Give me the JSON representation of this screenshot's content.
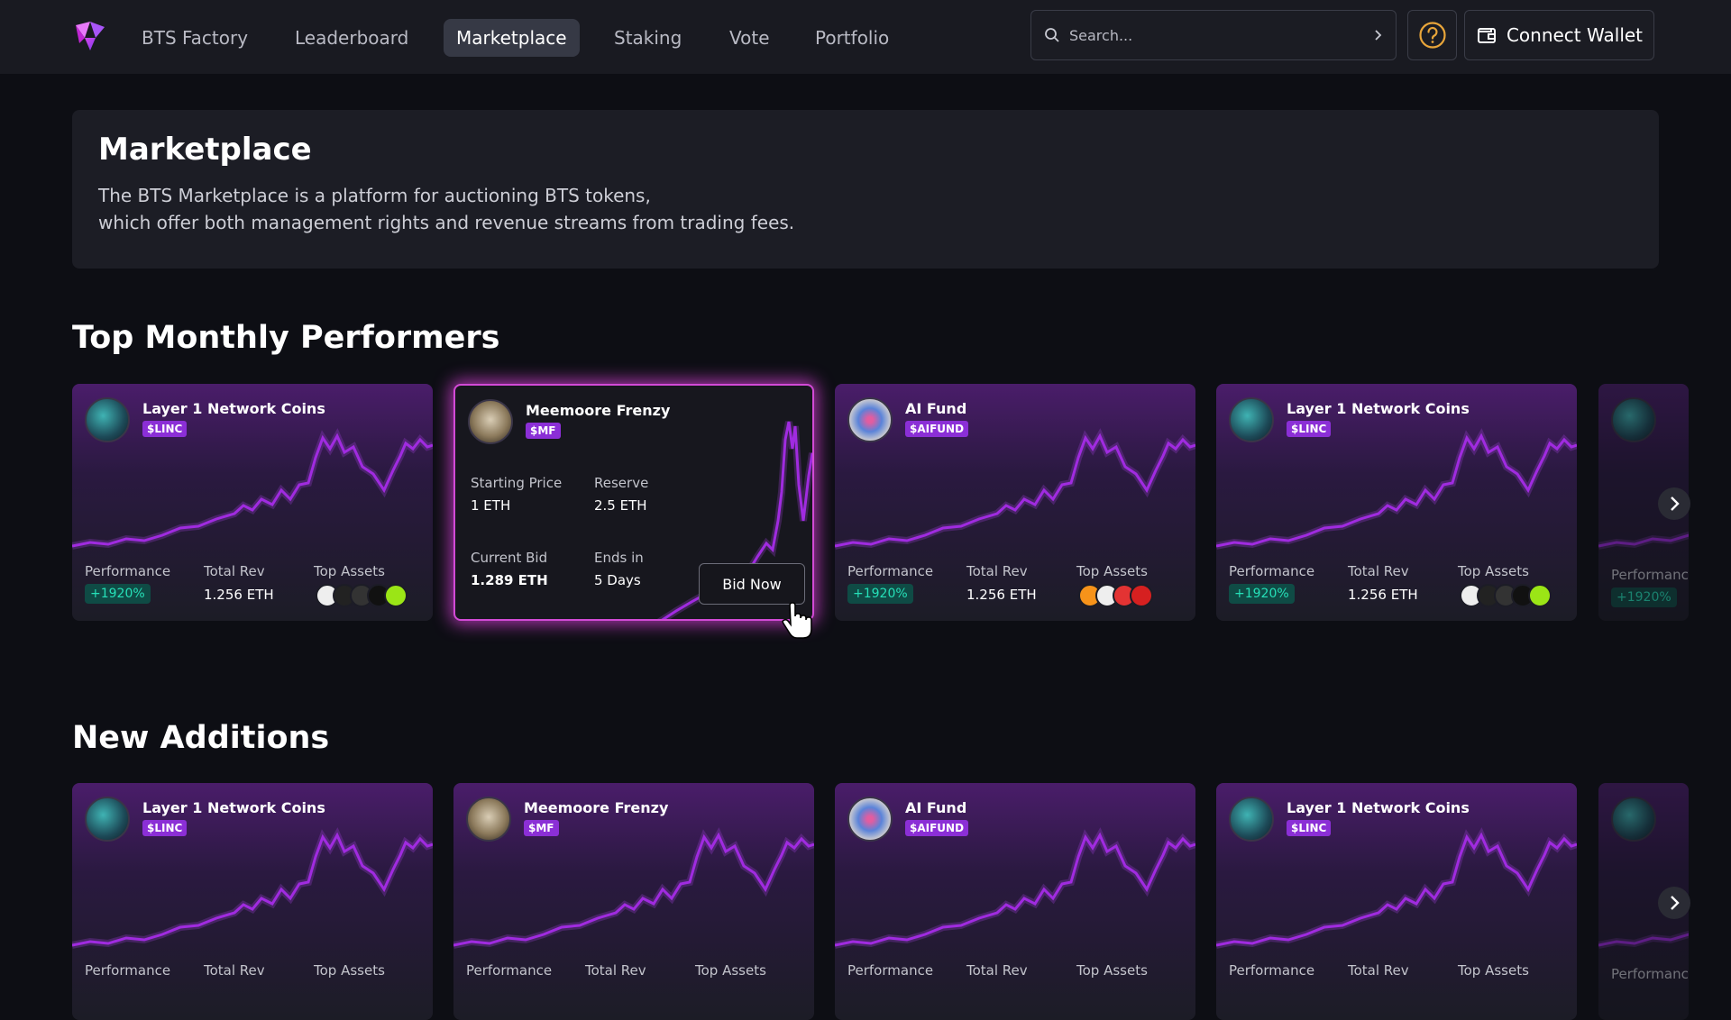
{
  "nav": {
    "items": [
      {
        "label": "BTS Factory",
        "active": false
      },
      {
        "label": "Leaderboard",
        "active": false
      },
      {
        "label": "Marketplace",
        "active": true
      },
      {
        "label": "Staking",
        "active": false
      },
      {
        "label": "Vote",
        "active": false
      },
      {
        "label": "Portfolio",
        "active": false
      }
    ],
    "search_placeholder": "Search...",
    "connect_wallet": "Connect Wallet"
  },
  "hero": {
    "title": "Marketplace",
    "line1": "The BTS Marketplace is a platform for auctioning BTS tokens,",
    "line2": "which offer both management rights and revenue streams from trading fees."
  },
  "sections": {
    "top_title": "Top Monthly Performers",
    "new_title": "New Additions"
  },
  "labels": {
    "performance": "Performance",
    "total_rev": "Total Rev",
    "top_assets": "Top Assets",
    "starting_price": "Starting Price",
    "reserve": "Reserve",
    "current_bid": "Current Bid",
    "ends_in": "Ends in",
    "bid_now": "Bid Now",
    "partial_perf": "Performance"
  },
  "cards": {
    "linc": {
      "name": "Layer 1 Network Coins",
      "ticker": "$LINC",
      "performance": "+1920%",
      "total_rev": "1.256 ETH"
    },
    "mf": {
      "name": "Meemoore Frenzy",
      "ticker": "$MF",
      "starting_price": "1 ETH",
      "reserve": "2.5 ETH",
      "current_bid": "1.289 ETH",
      "ends_in": "5 Days"
    },
    "aifund": {
      "name": "AI Fund",
      "ticker": "$AIFUND",
      "performance": "+1920%",
      "total_rev": "1.256 ETH"
    },
    "partial_perf": "+1920%"
  },
  "icons": {
    "logo": "bts-logo-icon",
    "search": "search-icon",
    "help": "help-icon",
    "wallet": "wallet-icon",
    "next": "chevron-right-icon",
    "cursor": "hand-cursor-icon"
  },
  "colors": {
    "accent": "#8b2fd6",
    "performance": "#26e0b8",
    "sparkline": "#a02be0",
    "help": "#e8a53a"
  }
}
